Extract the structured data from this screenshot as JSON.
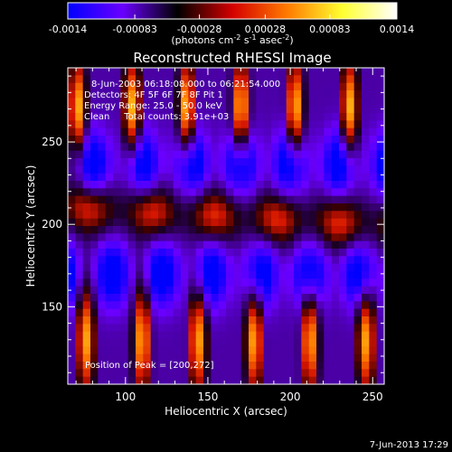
{
  "chart_data": {
    "type": "heatmap",
    "title": "Reconstructed RHESSI Image",
    "xlabel": "Heliocentric X (arcsec)",
    "ylabel": "Heliocentric Y (arcsec)",
    "xlim": [
      65,
      257
    ],
    "ylim": [
      103,
      295
    ],
    "xticks": [
      100,
      150,
      200,
      250
    ],
    "yticks": [
      150,
      200,
      250
    ],
    "colorbar": {
      "min": -0.0014,
      "max": 0.0014,
      "ticks": [
        "-0.0014",
        "-0.00083",
        "-0.00028",
        "0.00028",
        "0.00083",
        "0.0014"
      ],
      "label_parts": [
        "(photons cm",
        "-2",
        " s",
        "-1",
        " asec",
        "-2",
        ")"
      ],
      "colors": [
        "#0000ff",
        "#6a00ff",
        "#000000",
        "#d40000",
        "#ff7a00",
        "#ffff30",
        "#ffffff"
      ]
    },
    "annotations": [
      "8-Jun-2003 06:18:08.000 to 06:21:54.000",
      "Detectors: 4F 5F 6F 7F 8F  Pit 1",
      "Energy Range: 25.0 - 50.0 keV",
      "Clean     Total counts: 3.91e+03",
      "Position of Peak = [200,272]"
    ],
    "peak": [
      200,
      272
    ],
    "field": {
      "bright_rows_top": {
        "y": 270,
        "sigma": 22,
        "amp": 1.15,
        "period_x": 33,
        "phase_x": 71
      },
      "bright_rows_bottom": {
        "y": 130,
        "sigma": 24,
        "amp": 1.1,
        "period_x": 34,
        "phase_x": 76
      },
      "band_middle": {
        "y": 205,
        "sigma": 11,
        "amp": 0.55,
        "tilt": -0.06
      },
      "dark_rows": [
        {
          "y": 236,
          "sigma": 14,
          "amp": 0.85,
          "period_x": 30,
          "phase_x": 80
        },
        {
          "y": 170,
          "sigma": 14,
          "amp": 0.85,
          "period_x": 30,
          "phase_x": 92
        }
      ],
      "grid": [
        42,
        42
      ]
    }
  },
  "footer": {
    "timestamp": "7-Jun-2013 17:29"
  }
}
